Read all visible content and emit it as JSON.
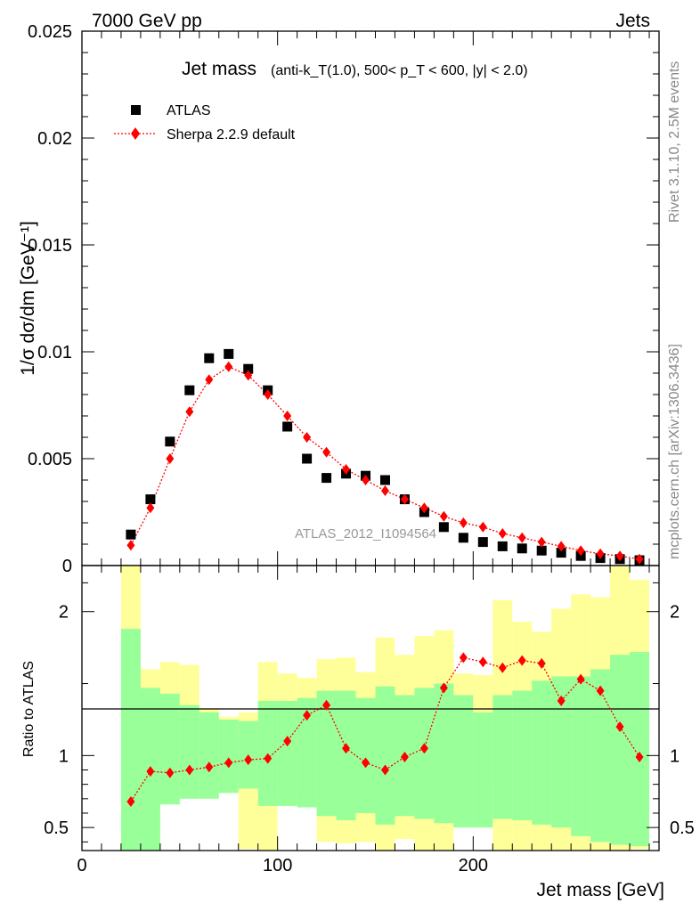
{
  "header": {
    "left": "7000 GeV pp",
    "right": "Jets"
  },
  "side_labels": {
    "rivet": "Rivet 3.1.10,  2.5M events",
    "mcplots": "mcplots.cern.ch [arXiv:1306.3436]"
  },
  "watermark": "ATLAS_2012_I1094564",
  "colors": {
    "data": "#000000",
    "mc": "#ff0000",
    "band_inner": "#99ff99",
    "band_outer": "#ffff99",
    "ratio_line": "#000000"
  },
  "chart_data": [
    {
      "type": "scatter",
      "title_main": "Jet mass",
      "title_detail": "(anti-k_T(1.0), 500< p_T < 600, |y| < 2.0)",
      "ylabel": "1/σ dσ/dm [GeV⁻¹]",
      "xlim": [
        0,
        295
      ],
      "ylim": [
        0,
        0.025
      ],
      "yticks": [
        {
          "v": 0.025,
          "label": "0.025"
        },
        {
          "v": 0.02,
          "label": "0.02"
        },
        {
          "v": 0.015,
          "label": "0.015"
        },
        {
          "v": 0.01,
          "label": "0.01"
        },
        {
          "v": 0.005,
          "label": "0.005"
        },
        {
          "v": 0,
          "label": "0"
        }
      ],
      "legend_position": "top-left",
      "x": [
        25,
        35,
        45,
        55,
        65,
        75,
        85,
        95,
        105,
        115,
        125,
        135,
        145,
        155,
        165,
        175,
        185,
        195,
        205,
        215,
        225,
        235,
        245,
        255,
        265,
        275,
        285
      ],
      "series": [
        {
          "name": "ATLAS",
          "marker": "square",
          "values": [
            0.00145,
            0.0031,
            0.0058,
            0.0082,
            0.0097,
            0.0099,
            0.0092,
            0.0082,
            0.0065,
            0.005,
            0.0041,
            0.0043,
            0.0042,
            0.004,
            0.0031,
            0.0025,
            0.0018,
            0.0013,
            0.0011,
            0.0009,
            0.0008,
            0.0007,
            0.0006,
            0.00045,
            0.00035,
            0.0003,
            0.00025
          ]
        },
        {
          "name": "Sherpa 2.2.9 default",
          "marker": "diamond",
          "line": "dotted",
          "values": [
            0.00095,
            0.0027,
            0.005,
            0.0072,
            0.0087,
            0.0093,
            0.0089,
            0.008,
            0.007,
            0.006,
            0.0053,
            0.0045,
            0.004,
            0.0035,
            0.0031,
            0.0027,
            0.0023,
            0.002,
            0.0018,
            0.0015,
            0.0013,
            0.0011,
            0.0009,
            0.0007,
            0.00055,
            0.00045,
            0.0003
          ]
        }
      ]
    },
    {
      "type": "line",
      "ylabel": "Ratio to ATLAS",
      "xlabel": "Jet mass [GeV]",
      "xlim": [
        0,
        295
      ],
      "ylim": [
        0.34,
        2.32
      ],
      "yticks": [
        {
          "v": 2,
          "label": "2"
        },
        {
          "v": 1,
          "label": "1"
        },
        {
          "v": 0.5,
          "label": "0.5"
        }
      ],
      "xticks": [
        {
          "v": 0,
          "label": "0"
        },
        {
          "v": 100,
          "label": "100"
        },
        {
          "v": 200,
          "label": "200"
        }
      ],
      "bin_edges": [
        20,
        30,
        40,
        50,
        60,
        70,
        80,
        90,
        100,
        110,
        120,
        130,
        140,
        150,
        160,
        170,
        180,
        190,
        200,
        210,
        220,
        230,
        240,
        250,
        260,
        270,
        280,
        290
      ],
      "band_inner": {
        "upper": [
          1.88,
          1.47,
          1.43,
          1.35,
          1.3,
          1.25,
          1.24,
          1.38,
          1.38,
          1.4,
          1.45,
          1.45,
          1.4,
          1.48,
          1.42,
          1.47,
          1.5,
          1.42,
          1.3,
          1.42,
          1.45,
          1.52,
          1.55,
          1.55,
          1.6,
          1.7,
          1.72
        ],
        "lower": [
          0.34,
          0.34,
          0.66,
          0.7,
          0.7,
          0.74,
          0.77,
          0.65,
          0.65,
          0.64,
          0.58,
          0.55,
          0.6,
          0.52,
          0.58,
          0.56,
          0.53,
          0.5,
          0.5,
          0.56,
          0.55,
          0.52,
          0.5,
          0.44,
          0.4,
          0.38,
          0.37
        ]
      },
      "band_outer": {
        "upper": [
          2.32,
          1.6,
          1.65,
          1.63,
          1.33,
          1.27,
          1.3,
          1.65,
          1.57,
          1.54,
          1.67,
          1.68,
          1.58,
          1.82,
          1.7,
          1.83,
          1.87,
          1.57,
          1.56,
          2.08,
          1.93,
          1.86,
          2.02,
          2.12,
          2.1,
          2.32,
          2.22
        ],
        "lower": [
          0.34,
          0.34,
          0.78,
          0.79,
          0.77,
          0.81,
          0.35,
          0.34,
          0.79,
          0.74,
          0.4,
          0.39,
          0.4,
          0.34,
          0.42,
          0.34,
          0.34,
          0.52,
          0.82,
          0.34,
          0.34,
          0.34,
          0.34,
          0.34,
          0.34,
          0.34,
          0.35
        ]
      },
      "series": [
        {
          "name": "Sherpa 2.2.9 default",
          "marker": "diamond",
          "line": "dotted",
          "x": [
            25,
            35,
            45,
            55,
            65,
            75,
            85,
            95,
            105,
            115,
            125,
            135,
            145,
            155,
            165,
            175,
            185,
            195,
            205,
            215,
            225,
            235,
            245,
            255,
            265,
            275,
            285
          ],
          "values": [
            0.68,
            0.89,
            0.88,
            0.9,
            0.92,
            0.95,
            0.97,
            0.98,
            1.1,
            1.28,
            1.35,
            1.05,
            0.95,
            0.9,
            0.99,
            1.05,
            1.47,
            1.68,
            1.65,
            1.61,
            1.66,
            1.64,
            1.38,
            1.53,
            1.45,
            1.2,
            0.99
          ]
        }
      ]
    }
  ]
}
